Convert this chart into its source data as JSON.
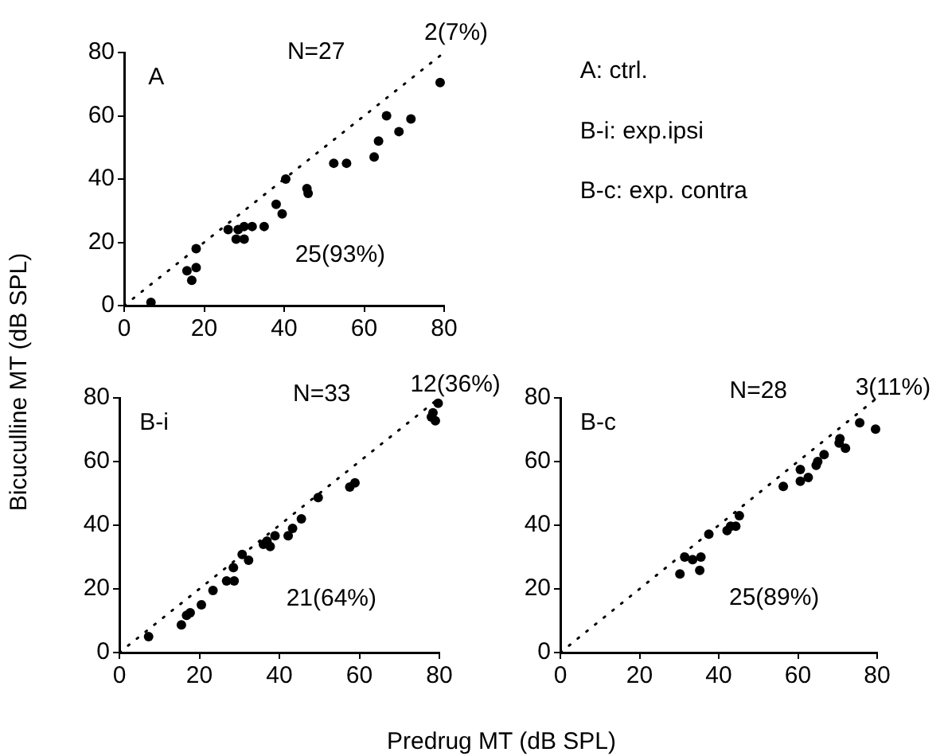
{
  "chart_data": [
    {
      "type": "scatter",
      "ylabel": "Bicuculline MT (dB SPL)",
      "xlim": [
        0,
        80
      ],
      "ylim": [
        0,
        80
      ],
      "xticks": [
        0,
        20,
        40,
        60,
        80
      ],
      "yticks": [
        0,
        20,
        40,
        60,
        80
      ],
      "grid": false,
      "legend": false,
      "annotations": [
        "A",
        "N=27",
        "2(7%)",
        "25(93%)",
        "A: ctrl.",
        "B-i: exp.ipsi",
        "B-c: exp. contra"
      ],
      "series": [
        {
          "type": "scatter",
          "color": "#000000",
          "marker": "circle",
          "x": [
            6.7,
            15.7,
            16.9,
            18,
            18,
            26,
            28,
            30,
            28.5,
            30,
            32,
            35,
            38,
            39.5,
            40.4,
            45.7,
            46,
            52.4,
            55.6,
            62.5,
            63.6,
            65.6,
            68.7,
            71.7,
            79
          ],
          "values": [
            1,
            11,
            8,
            12,
            18,
            24,
            21,
            21,
            24,
            25,
            25,
            25,
            32,
            29,
            40,
            37,
            35.5,
            45,
            45,
            47,
            52,
            60,
            55,
            59,
            70.5
          ]
        },
        {
          "type": "line",
          "color": "#000000",
          "marker": "none",
          "line_style": "dotted",
          "x": [
            0,
            80
          ],
          "values": [
            0,
            80
          ]
        }
      ]
    },
    {
      "type": "scatter",
      "xlabel": "Predrug MT (dB SPL)",
      "xlim": [
        0,
        80
      ],
      "ylim": [
        0,
        80
      ],
      "xticks": [
        0,
        20,
        40,
        60,
        80
      ],
      "yticks": [
        0,
        20,
        40,
        60,
        80
      ],
      "grid": false,
      "legend": false,
      "annotations": [
        "B-i",
        "N=33",
        "12(36%)",
        "21(64%)"
      ],
      "series": [
        {
          "type": "scatter",
          "color": "#000000",
          "marker": "circle",
          "x": [
            7.3,
            15.5,
            16.8,
            17.7,
            20.5,
            23.4,
            26.8,
            28.7,
            28.5,
            30.7,
            32.3,
            36,
            36.9,
            37.7,
            38.9,
            42.2,
            43.3,
            45.5,
            49.7,
            57.6,
            58.9,
            79.7,
            78.4,
            79,
            78
          ],
          "values": [
            5,
            8.7,
            11.7,
            12.5,
            15,
            19.5,
            22.5,
            22.5,
            26.7,
            30.8,
            29,
            34,
            35,
            33.3,
            36.7,
            36.7,
            39,
            42,
            48.7,
            52,
            53.3,
            78.3,
            75.3,
            72.8,
            74
          ]
        },
        {
          "type": "line",
          "color": "#000000",
          "marker": "none",
          "line_style": "dotted",
          "x": [
            0,
            80
          ],
          "values": [
            0,
            80
          ]
        }
      ]
    },
    {
      "type": "scatter",
      "xlim": [
        0,
        80
      ],
      "ylim": [
        0,
        80
      ],
      "xticks": [
        0,
        20,
        40,
        60,
        80
      ],
      "yticks": [
        0,
        20,
        40,
        60,
        80
      ],
      "grid": false,
      "legend": false,
      "annotations": [
        "B-c",
        "N=28",
        "3(11%)",
        "25(89%)"
      ],
      "series": [
        {
          "type": "scatter",
          "color": "#000000",
          "marker": "circle",
          "x": [
            30.2,
            31.4,
            33.4,
            35.5,
            35.2,
            37.5,
            42.1,
            43,
            44.3,
            45.2,
            56.3,
            60.6,
            60.6,
            62.6,
            64.6,
            65,
            66.6,
            70.4,
            70.6,
            72,
            75.6,
            79.6
          ],
          "values": [
            24.7,
            30,
            29.2,
            30,
            25.8,
            37.2,
            38.3,
            39.7,
            39.7,
            43,
            52.2,
            53.8,
            57.5,
            55,
            58.8,
            60,
            62.2,
            65.8,
            67.2,
            64.2,
            72.2,
            70.2
          ]
        },
        {
          "type": "line",
          "color": "#000000",
          "marker": "none",
          "line_style": "dotted",
          "x": [
            0,
            80
          ],
          "values": [
            0,
            80
          ]
        }
      ]
    }
  ]
}
